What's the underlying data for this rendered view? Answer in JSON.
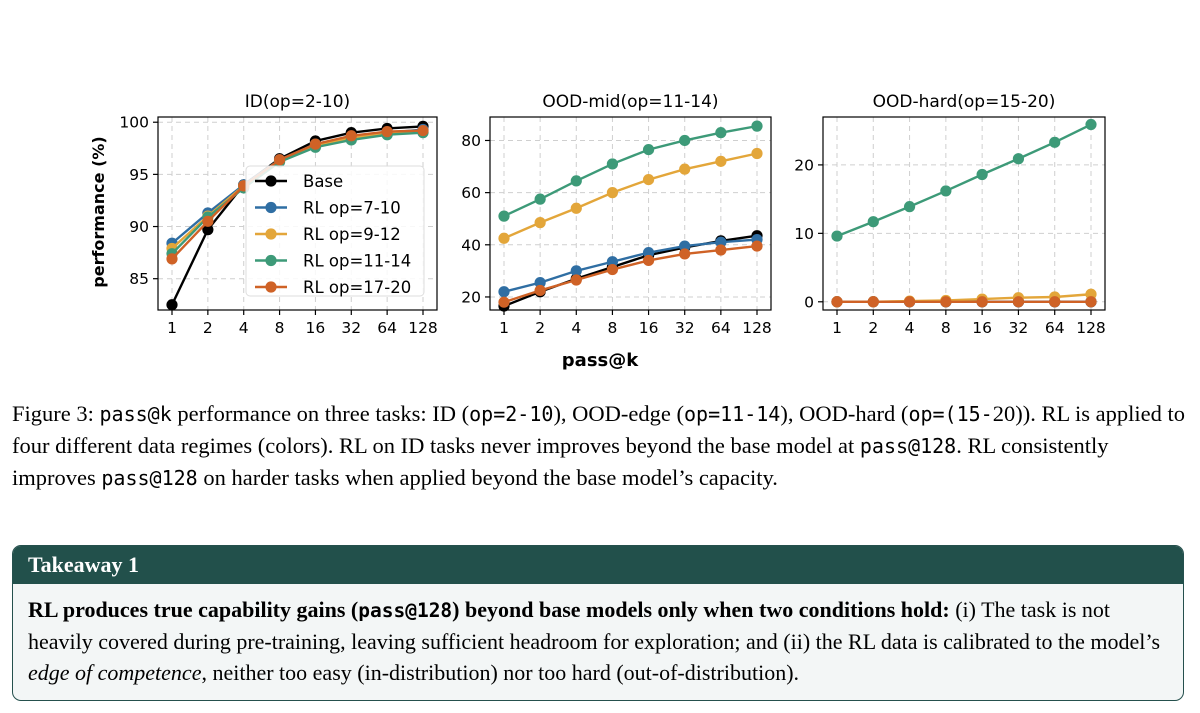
{
  "figure": {
    "ylabel": "performance (%)",
    "xlabel": "pass@k"
  },
  "chart_data": [
    {
      "type": "line",
      "title": "ID(op=2-10)",
      "xlabel": "",
      "ylabel": "performance (%)",
      "x": [
        "1",
        "2",
        "4",
        "8",
        "16",
        "32",
        "64",
        "128"
      ],
      "ylim": [
        82,
        100.5
      ],
      "yticks": [
        85,
        90,
        95,
        100
      ],
      "legend": "center",
      "series": [
        {
          "name": "Base",
          "color": "#000000",
          "values": [
            82.5,
            89.7,
            94.0,
            96.5,
            98.2,
            99.0,
            99.4,
            99.6
          ]
        },
        {
          "name": "RL op=7-10",
          "color": "#2f6ea3",
          "values": [
            88.4,
            91.3,
            94.0,
            96.4,
            97.9,
            98.6,
            99.0,
            99.3
          ]
        },
        {
          "name": "RL op=9-12",
          "color": "#e3a63a",
          "values": [
            87.9,
            91.0,
            93.9,
            96.3,
            97.8,
            98.5,
            98.9,
            99.1
          ]
        },
        {
          "name": "RL op=11-14",
          "color": "#3d9a78",
          "values": [
            87.4,
            90.9,
            93.7,
            96.2,
            97.6,
            98.3,
            98.8,
            99.0
          ]
        },
        {
          "name": "RL op=17-20",
          "color": "#cf6226",
          "values": [
            86.9,
            90.5,
            93.9,
            96.4,
            97.9,
            98.7,
            99.1,
            99.2
          ]
        }
      ]
    },
    {
      "type": "line",
      "title": "OOD-mid(op=11-14)",
      "xlabel": "pass@k",
      "ylabel": "",
      "x": [
        "1",
        "2",
        "4",
        "8",
        "16",
        "32",
        "64",
        "128"
      ],
      "ylim": [
        15,
        89
      ],
      "yticks": [
        20,
        40,
        60,
        80
      ],
      "series": [
        {
          "name": "Base",
          "color": "#000000",
          "values": [
            16.5,
            22.0,
            27.0,
            31.5,
            36.0,
            39.0,
            41.5,
            43.5
          ]
        },
        {
          "name": "RL op=7-10",
          "color": "#2f6ea3",
          "values": [
            22.0,
            25.5,
            30.0,
            33.5,
            37.0,
            39.5,
            41.0,
            42.0
          ]
        },
        {
          "name": "RL op=9-12",
          "color": "#e3a63a",
          "values": [
            42.5,
            48.5,
            54.0,
            60.0,
            65.0,
            69.0,
            72.0,
            75.0
          ]
        },
        {
          "name": "RL op=11-14",
          "color": "#3d9a78",
          "values": [
            51.0,
            57.5,
            64.5,
            71.0,
            76.5,
            80.0,
            83.0,
            85.5
          ]
        },
        {
          "name": "RL op=17-20",
          "color": "#cf6226",
          "values": [
            18.0,
            22.5,
            26.5,
            30.5,
            34.0,
            36.5,
            38.0,
            39.5
          ]
        }
      ]
    },
    {
      "type": "line",
      "title": "OOD-hard(op=15-20)",
      "xlabel": "",
      "ylabel": "",
      "x": [
        "1",
        "2",
        "4",
        "8",
        "16",
        "32",
        "64",
        "128"
      ],
      "ylim": [
        -1.2,
        27
      ],
      "yticks": [
        0,
        10,
        20
      ],
      "series": [
        {
          "name": "Base",
          "color": "#000000",
          "values": [
            0.0,
            0.0,
            0.0,
            0.0,
            0.0,
            0.0,
            0.0,
            0.0
          ]
        },
        {
          "name": "RL op=7-10",
          "color": "#2f6ea3",
          "values": [
            0.0,
            0.0,
            0.0,
            0.0,
            0.0,
            0.0,
            0.0,
            0.0
          ]
        },
        {
          "name": "RL op=9-12",
          "color": "#e3a63a",
          "values": [
            0.0,
            0.0,
            0.1,
            0.2,
            0.4,
            0.6,
            0.7,
            1.1
          ]
        },
        {
          "name": "RL op=11-14",
          "color": "#3d9a78",
          "values": [
            9.6,
            11.7,
            13.9,
            16.2,
            18.6,
            20.9,
            23.3,
            25.9
          ]
        },
        {
          "name": "RL op=17-20",
          "color": "#cf6226",
          "values": [
            0.0,
            0.0,
            0.0,
            0.0,
            0.0,
            0.0,
            0.0,
            0.0
          ]
        }
      ]
    }
  ],
  "caption": {
    "label": "Figure 3:",
    "code_passk": "pass@k",
    "t1": "performance on three tasks: ID (",
    "code_op1": "op=2-10",
    "t2": "), OOD-edge (",
    "code_op2": "op=11-14",
    "t3": "), OOD-hard (",
    "code_op3": "op=(15-",
    "t4": "20)). RL is applied to four different data regimes (colors). RL on ID tasks never improves beyond the base model at",
    "code_p128a": "pass@128",
    "t5": ". RL consistently improves",
    "code_p128b": "pass@128",
    "t6": "on harder tasks when applied beyond the base model’s capacity."
  },
  "takeaway": {
    "title": "Takeaway 1",
    "bold1": "RL produces true capability gains (",
    "code": "pass@128",
    "bold2": ") beyond base models only when two conditions hold:",
    "t1": "(i) The task is not heavily covered during pre-training, leaving sufficient headroom for exploration; and (ii) the RL data is calibrated to the model’s",
    "italic": "edge of competence",
    "t2": ", neither too easy (in-distribution) nor too hard (out-of-distribution)."
  }
}
